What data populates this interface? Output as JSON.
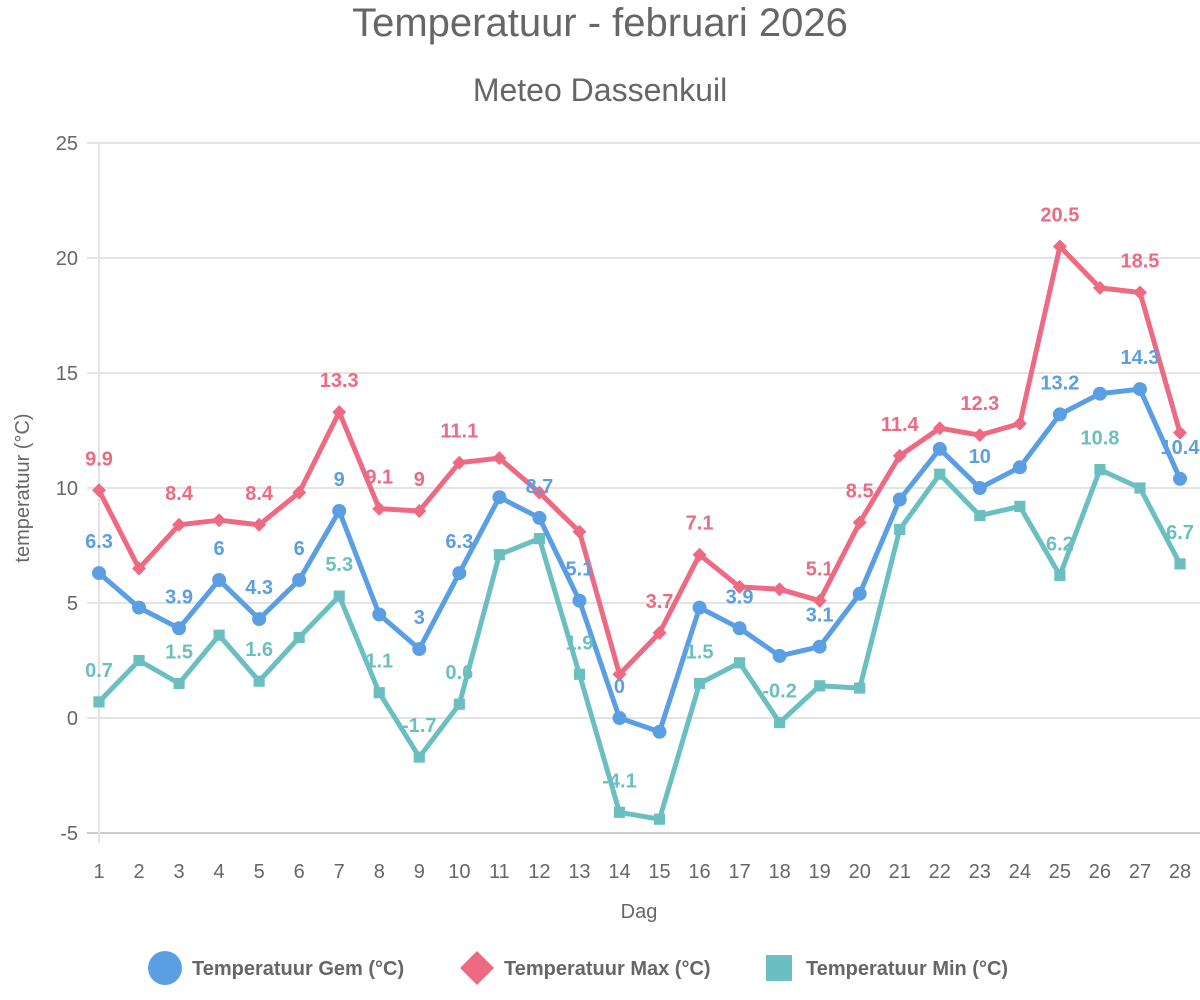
{
  "chart_data": {
    "type": "line",
    "title": "Temperatuur - februari 2026",
    "subtitle": "Meteo Dassenkuil",
    "xlabel": "Dag",
    "ylabel": "temperatuur (°C)",
    "ylim": [
      -5,
      25
    ],
    "yticks": [
      -5,
      0,
      5,
      10,
      15,
      20,
      25
    ],
    "grid": true,
    "legend_position": "bottom",
    "categories": [
      "1",
      "2",
      "3",
      "4",
      "5",
      "6",
      "7",
      "8",
      "9",
      "10",
      "11",
      "12",
      "13",
      "14",
      "15",
      "16",
      "17",
      "18",
      "19",
      "20",
      "21",
      "22",
      "23",
      "24",
      "25",
      "26",
      "27",
      "28"
    ],
    "series": [
      {
        "name": "Temperatuur Gem (°C)",
        "color": "#5A9FE4",
        "marker": "circle",
        "values": [
          6.3,
          4.8,
          3.9,
          6,
          4.3,
          6,
          9,
          4.5,
          3,
          6.3,
          9.6,
          8.7,
          5.1,
          0,
          -0.6,
          4.8,
          3.9,
          2.7,
          3.1,
          5.4,
          9.5,
          11.7,
          10,
          10.9,
          13.2,
          14.1,
          14.3,
          10.4
        ],
        "labeled_days": [
          1,
          3,
          4,
          5,
          6,
          7,
          9,
          10,
          12,
          13,
          14,
          17,
          19,
          23,
          25,
          27,
          28
        ]
      },
      {
        "name": "Temperatuur Max (°C)",
        "color": "#EE6A82",
        "marker": "diamond",
        "values": [
          9.9,
          6.5,
          8.4,
          8.6,
          8.4,
          9.8,
          13.3,
          9.1,
          9,
          11.1,
          11.3,
          9.8,
          8.1,
          1.9,
          3.7,
          7.1,
          5.7,
          5.6,
          5.1,
          8.5,
          11.4,
          12.6,
          12.3,
          12.8,
          20.5,
          18.7,
          18.5,
          12.4
        ],
        "labeled_days": [
          1,
          3,
          5,
          7,
          8,
          9,
          10,
          15,
          16,
          19,
          20,
          21,
          23,
          25,
          27
        ]
      },
      {
        "name": "Temperatuur Min (°C)",
        "color": "#6CBFC0",
        "marker": "square",
        "values": [
          0.7,
          2.5,
          1.5,
          3.6,
          1.6,
          3.5,
          5.3,
          1.1,
          -1.7,
          0.6,
          7.1,
          7.8,
          1.9,
          -4.1,
          -4.4,
          1.5,
          2.4,
          -0.2,
          1.4,
          1.3,
          8.2,
          10.6,
          8.8,
          9.2,
          6.2,
          10.8,
          10,
          6.7
        ],
        "labeled_days": [
          1,
          3,
          5,
          7,
          8,
          9,
          10,
          13,
          14,
          16,
          18,
          25,
          26,
          28
        ]
      }
    ]
  }
}
